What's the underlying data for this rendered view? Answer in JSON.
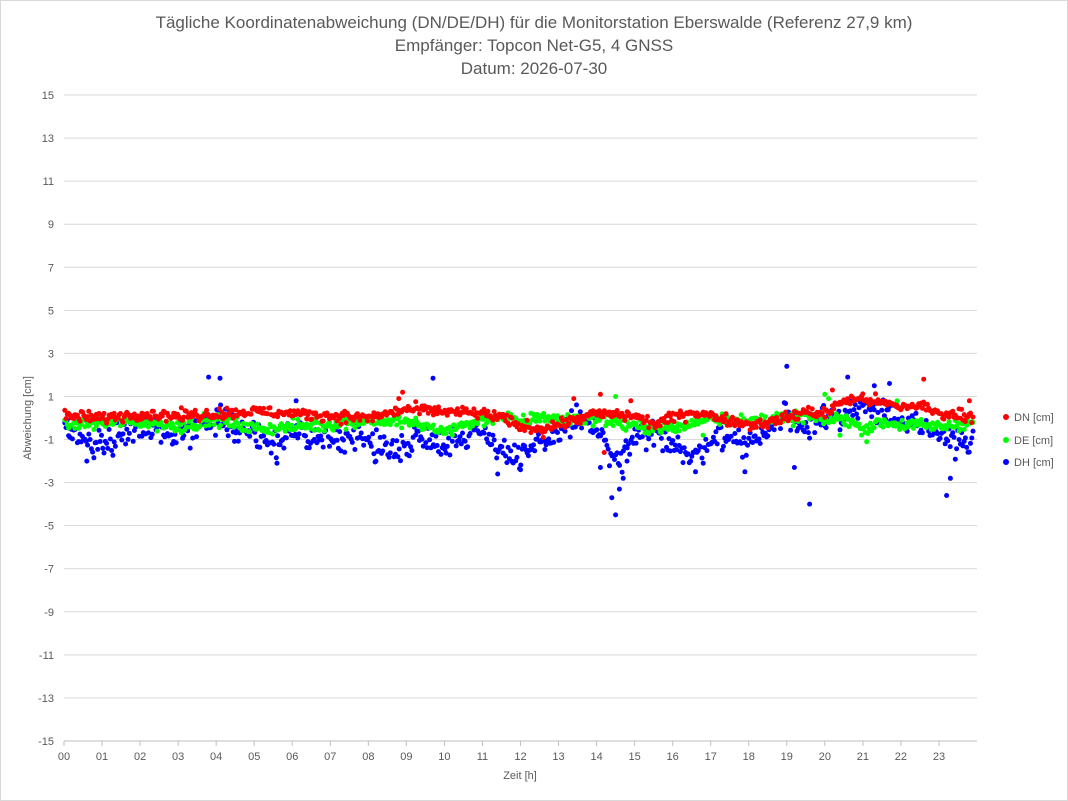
{
  "chart_data": {
    "type": "scatter",
    "title_lines": [
      "Tägliche Koordinatenabweichung (DN/DE/DH) für die Monitorstation Eberswalde (Referenz 27,9 km)",
      "Empfänger: Topcon Net-G5, 4 GNSS",
      "Datum: 2026-07-30"
    ],
    "xlabel": "Zeit [h]",
    "ylabel": "Abweichung [cm]",
    "xlim": [
      0,
      24
    ],
    "ylim": [
      -15,
      15
    ],
    "x_tick_labels": [
      "00",
      "01",
      "02",
      "03",
      "04",
      "05",
      "06",
      "07",
      "08",
      "09",
      "10",
      "11",
      "12",
      "13",
      "14",
      "15",
      "16",
      "17",
      "18",
      "19",
      "20",
      "21",
      "22",
      "23"
    ],
    "y_ticks": [
      15,
      13,
      11,
      9,
      7,
      5,
      3,
      1,
      -1,
      -3,
      -5,
      -7,
      -9,
      -11,
      -13,
      -15
    ],
    "grid": "horizontal",
    "legend_position": "right",
    "sampling_interval_h": 0.0333,
    "series": [
      {
        "name": "DN [cm]",
        "color": "#ff0000",
        "knots": [
          [
            0,
            0.1
          ],
          [
            1,
            0.0
          ],
          [
            2,
            0.2
          ],
          [
            3,
            0.1
          ],
          [
            4,
            0.2
          ],
          [
            5,
            0.3
          ],
          [
            6,
            0.2
          ],
          [
            7,
            0.1
          ],
          [
            8,
            0.0
          ],
          [
            9,
            0.4
          ],
          [
            10,
            0.3
          ],
          [
            11,
            0.2
          ],
          [
            11.5,
            0.0
          ],
          [
            12,
            -0.4
          ],
          [
            12.5,
            -0.5
          ],
          [
            13,
            -0.3
          ],
          [
            14,
            0.2
          ],
          [
            15,
            0.1
          ],
          [
            15.5,
            -0.3
          ],
          [
            16,
            0.0
          ],
          [
            16.5,
            0.3
          ],
          [
            17,
            0.1
          ],
          [
            18,
            -0.3
          ],
          [
            18.5,
            -0.2
          ],
          [
            19,
            0.0
          ],
          [
            19.5,
            0.3
          ],
          [
            20,
            0.2
          ],
          [
            20.5,
            0.8
          ],
          [
            21,
            0.9
          ],
          [
            21.5,
            0.7
          ],
          [
            22,
            0.5
          ],
          [
            22.5,
            0.6
          ],
          [
            23,
            0.2
          ],
          [
            23.9,
            0.1
          ]
        ],
        "noise": 0.18,
        "outliers": [
          [
            8.9,
            1.2
          ],
          [
            8.8,
            0.9
          ],
          [
            13.4,
            0.9
          ],
          [
            14.1,
            1.1
          ],
          [
            14.9,
            0.8
          ],
          [
            22.6,
            1.8
          ],
          [
            23.8,
            0.8
          ],
          [
            20.2,
            1.3
          ],
          [
            14.2,
            -1.6
          ],
          [
            12.6,
            -0.9
          ]
        ]
      },
      {
        "name": "DE [cm]",
        "color": "#00ff00",
        "knots": [
          [
            0,
            -0.3
          ],
          [
            1,
            -0.2
          ],
          [
            2,
            -0.2
          ],
          [
            3,
            -0.4
          ],
          [
            4,
            -0.1
          ],
          [
            5,
            -0.5
          ],
          [
            6,
            -0.4
          ],
          [
            7,
            -0.3
          ],
          [
            8,
            -0.1
          ],
          [
            9,
            -0.2
          ],
          [
            10,
            -0.6
          ],
          [
            11,
            -0.1
          ],
          [
            11.5,
            0.1
          ],
          [
            12,
            -0.2
          ],
          [
            12.5,
            0.1
          ],
          [
            13,
            -0.1
          ],
          [
            14,
            0.0
          ],
          [
            15,
            -0.4
          ],
          [
            16,
            -0.5
          ],
          [
            16.5,
            -0.3
          ],
          [
            17,
            0.1
          ],
          [
            18,
            -0.2
          ],
          [
            18.5,
            0.0
          ],
          [
            19,
            -0.1
          ],
          [
            19.5,
            0.1
          ],
          [
            20,
            -0.1
          ],
          [
            20.5,
            0.0
          ],
          [
            21,
            -0.5
          ],
          [
            21.5,
            -0.2
          ],
          [
            22,
            -0.3
          ],
          [
            23,
            -0.4
          ],
          [
            23.9,
            -0.2
          ]
        ],
        "noise": 0.2,
        "outliers": [
          [
            14.5,
            1.0
          ],
          [
            20.0,
            1.1
          ],
          [
            20.1,
            0.9
          ],
          [
            21.1,
            -1.1
          ],
          [
            20.4,
            -0.8
          ],
          [
            16.8,
            -0.8
          ],
          [
            21.9,
            0.8
          ]
        ]
      },
      {
        "name": "DH [cm]",
        "color": "#0000ff",
        "knots": [
          [
            0,
            -0.6
          ],
          [
            0.5,
            -1.0
          ],
          [
            1,
            -1.2
          ],
          [
            1.5,
            -0.8
          ],
          [
            2,
            -0.3
          ],
          [
            2.5,
            -0.5
          ],
          [
            3,
            -0.8
          ],
          [
            3.5,
            -0.4
          ],
          [
            4,
            0.1
          ],
          [
            4.5,
            -0.4
          ],
          [
            5,
            -0.6
          ],
          [
            5.5,
            -1.3
          ],
          [
            6,
            -0.8
          ],
          [
            6.5,
            -0.9
          ],
          [
            7,
            -1.1
          ],
          [
            7.5,
            -0.7
          ],
          [
            8,
            -1.1
          ],
          [
            8.5,
            -1.5
          ],
          [
            9,
            -1.2
          ],
          [
            9.5,
            -0.8
          ],
          [
            10,
            -1.2
          ],
          [
            10.5,
            -0.9
          ],
          [
            11,
            -0.5
          ],
          [
            11.5,
            -1.5
          ],
          [
            12,
            -2.0
          ],
          [
            12.5,
            -1.2
          ],
          [
            13,
            -0.7
          ],
          [
            13.5,
            0.0
          ],
          [
            14,
            -0.5
          ],
          [
            14.5,
            -2.2
          ],
          [
            15,
            -1.0
          ],
          [
            15.5,
            -0.8
          ],
          [
            16,
            -1.0
          ],
          [
            16.5,
            -2.0
          ],
          [
            17,
            -0.9
          ],
          [
            17.5,
            -0.8
          ],
          [
            18,
            -1.2
          ],
          [
            18.5,
            -0.6
          ],
          [
            19,
            0.2
          ],
          [
            19.5,
            -0.5
          ],
          [
            20,
            0.3
          ],
          [
            20.5,
            -0.2
          ],
          [
            21,
            0.5
          ],
          [
            21.5,
            0.6
          ],
          [
            22,
            -0.2
          ],
          [
            22.5,
            -0.5
          ],
          [
            23,
            -0.8
          ],
          [
            23.5,
            -1.0
          ],
          [
            23.9,
            -1.2
          ]
        ],
        "noise": 0.45,
        "outliers": [
          [
            3.8,
            1.9
          ],
          [
            4.1,
            1.85
          ],
          [
            9.7,
            1.85
          ],
          [
            6.1,
            0.8
          ],
          [
            19.0,
            2.4
          ],
          [
            20.6,
            1.9
          ],
          [
            21.7,
            1.6
          ],
          [
            21.3,
            1.5
          ],
          [
            14.4,
            -3.7
          ],
          [
            14.5,
            -4.5
          ],
          [
            14.6,
            -3.3
          ],
          [
            14.7,
            -2.8
          ],
          [
            14.8,
            -2.0
          ],
          [
            19.6,
            -4.0
          ],
          [
            23.2,
            -3.6
          ],
          [
            23.3,
            -2.8
          ],
          [
            11.4,
            -2.6
          ],
          [
            12.0,
            -2.4
          ],
          [
            14.1,
            -2.3
          ],
          [
            16.6,
            -2.5
          ],
          [
            17.9,
            -2.5
          ],
          [
            19.2,
            -2.3
          ],
          [
            0.6,
            -2.0
          ],
          [
            5.6,
            -2.1
          ],
          [
            8.2,
            -2.0
          ]
        ]
      }
    ]
  }
}
